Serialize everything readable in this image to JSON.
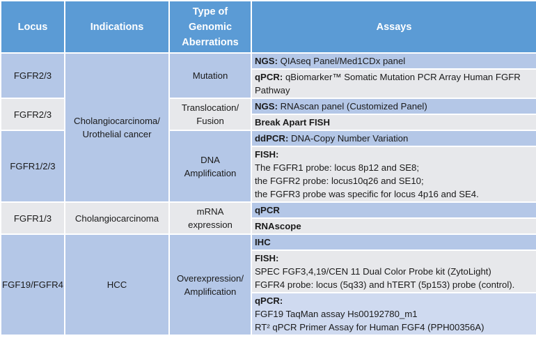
{
  "headers": {
    "locus": "Locus",
    "indications": "Indications",
    "type_line1": "Type of",
    "type_line2": "Genomic",
    "type_line3": "Aberrations",
    "assays": "Assays"
  },
  "rows": [
    {
      "locus": "FGFR2/3",
      "type": "Mutation",
      "assays": [
        {
          "label": "NGS:",
          "text": " QIAseq Panel/Med1CDx panel"
        },
        {
          "label": "qPCR:",
          "text": " qBiomarker™ Somatic Mutation PCR Array Human FGFR Pathway"
        }
      ]
    },
    {
      "locus": "FGFR2/3",
      "type_line1": "Translocation/",
      "type_line2": "Fusion",
      "assays": [
        {
          "label": "NGS:",
          "text": " RNAscan panel (Customized Panel)"
        },
        {
          "label": "Break Apart FISH",
          "text": ""
        }
      ]
    },
    {
      "locus": "FGFR1/2/3",
      "type_line1": "DNA",
      "type_line2": "Amplification",
      "assays": [
        {
          "label": "ddPCR:",
          "text": " DNA-Copy Number Variation"
        },
        {
          "label": "FISH:",
          "lines": [
            "The FGFR1 probe: locus 8p12 and SE8;",
            "the FGFR2 probe: locus10q26 and SE10;",
            "the FGFR3 probe was specific for locus 4p16 and SE4."
          ]
        }
      ]
    },
    {
      "locus": "FGFR1/3",
      "indication": "Cholangiocarcinoma",
      "type_line1": "mRNA",
      "type_line2": "expression",
      "assays": [
        {
          "label": "qPCR",
          "text": ""
        },
        {
          "label": "RNAscope",
          "text": ""
        }
      ]
    },
    {
      "locus": "FGF19/FGFR4",
      "indication": "HCC",
      "type_line1": "Overexpression/",
      "type_line2": "Amplification",
      "assays": [
        {
          "label": "IHC",
          "text": ""
        },
        {
          "label": "FISH:",
          "lines": [
            "SPEC FGF3,4,19/CEN 11 Dual Color Probe kit (ZytoLight)",
            "FGFR4 probe: locus (5q33) and hTERT (5p153) probe (control)."
          ]
        },
        {
          "label": "qPCR:",
          "lines": [
            "FGF19 TaqMan assay Hs00192780_m1",
            "RT² qPCR Primer Assay for Human FGF4 (PPH00356A)"
          ]
        }
      ]
    }
  ],
  "shared_indication": {
    "line1": "Cholangiocarcinoma/",
    "line2": "Urothelial cancer"
  }
}
